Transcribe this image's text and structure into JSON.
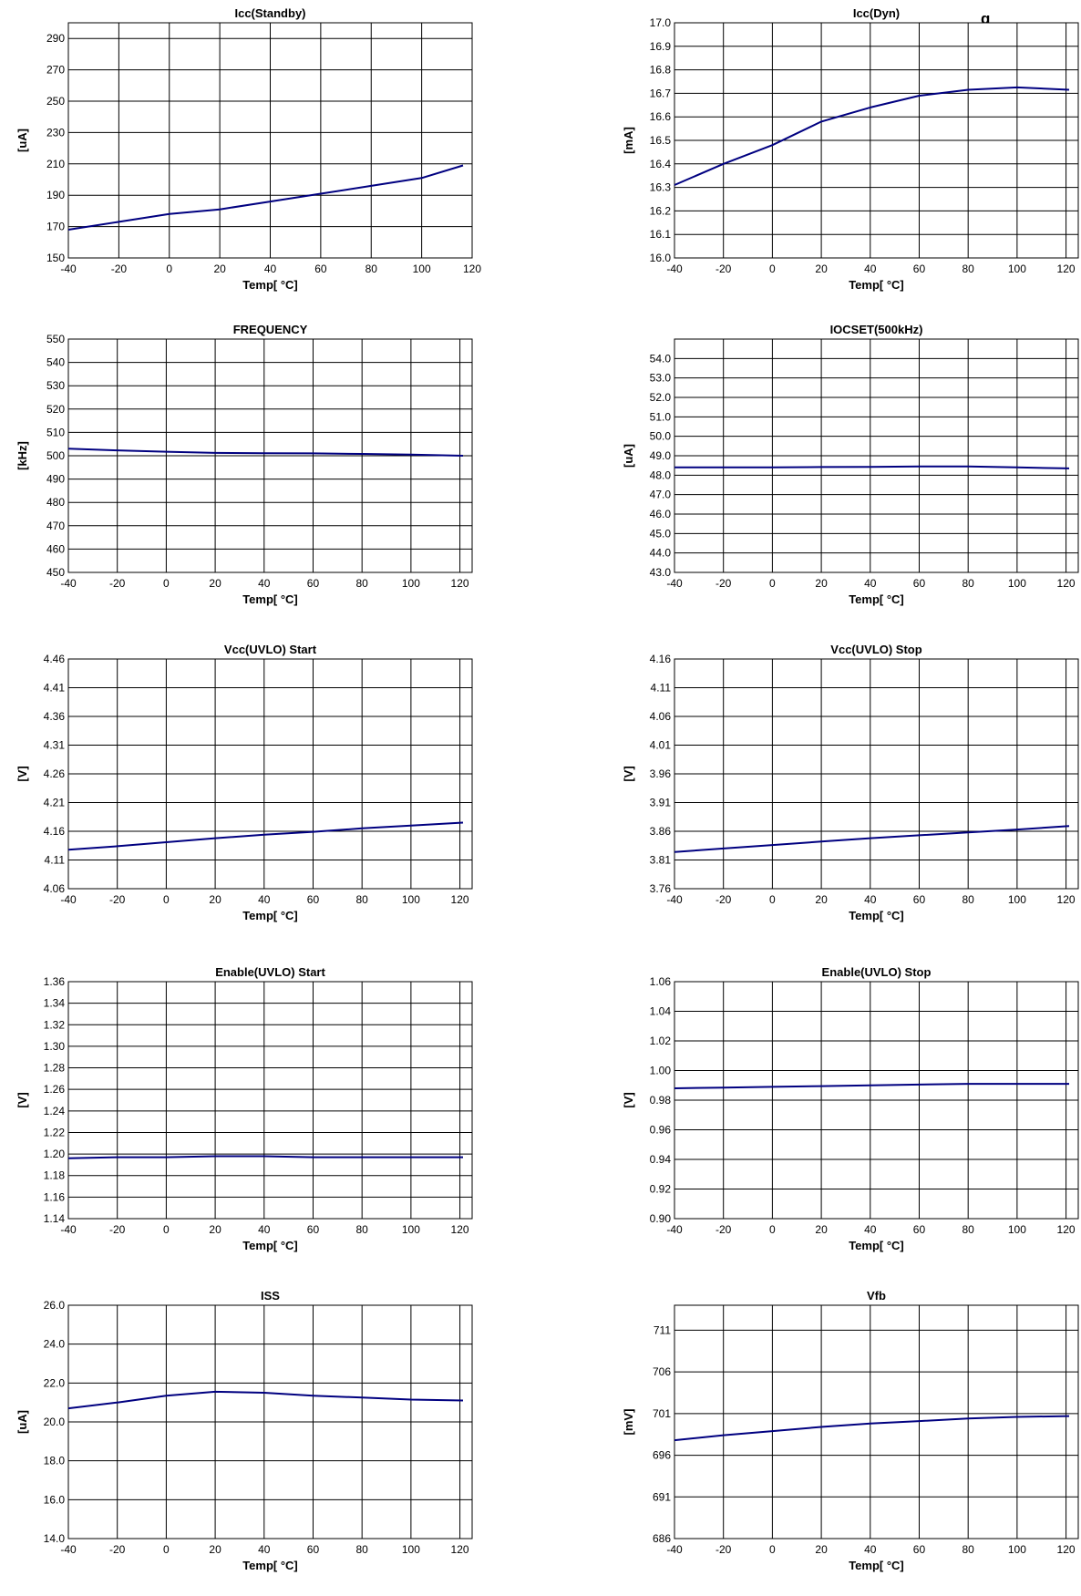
{
  "header_fragment": "g",
  "chart_data": [
    {
      "type": "line",
      "title": "Icc(Standby)",
      "xlabel": "Temp[ °C]",
      "ylabel": "[uA]",
      "xlim": [
        -40,
        120
      ],
      "xticks": [
        -40,
        -20,
        0,
        20,
        40,
        60,
        80,
        100,
        120
      ],
      "ylim": [
        150,
        300
      ],
      "yticks": [
        150,
        170,
        190,
        210,
        230,
        250,
        270,
        290
      ],
      "ydecimals": 0,
      "grid": true,
      "color": "#000080",
      "series": [
        {
          "x": [
            -40,
            -20,
            0,
            20,
            40,
            60,
            80,
            100,
            125
          ],
          "y": [
            168,
            173,
            178,
            181,
            186,
            191,
            196,
            201,
            209
          ]
        }
      ]
    },
    {
      "type": "line",
      "title": "Icc(Dyn)",
      "xlabel": "Temp[ °C]",
      "ylabel": "[mA]",
      "xlim": [
        -40,
        125
      ],
      "xticks": [
        -40,
        -20,
        0,
        20,
        40,
        60,
        80,
        100,
        120
      ],
      "ylim": [
        16.0,
        17.0
      ],
      "yticks": [
        16.0,
        16.1,
        16.2,
        16.3,
        16.4,
        16.5,
        16.6,
        16.7,
        16.8,
        16.9,
        17.0
      ],
      "ydecimals": 1,
      "grid": true,
      "color": "#000080",
      "series": [
        {
          "x": [
            -40,
            -20,
            0,
            20,
            40,
            60,
            80,
            100,
            125
          ],
          "y": [
            16.31,
            16.4,
            16.48,
            16.58,
            16.64,
            16.69,
            16.715,
            16.725,
            16.715
          ]
        }
      ]
    },
    {
      "type": "line",
      "title": "FREQUENCY",
      "xlabel": "Temp[ °C]",
      "ylabel": "[kHz]",
      "xlim": [
        -40,
        125
      ],
      "xticks": [
        -40,
        -20,
        0,
        20,
        40,
        60,
        80,
        100,
        120
      ],
      "ylim": [
        450,
        550
      ],
      "yticks": [
        450,
        460,
        470,
        480,
        490,
        500,
        510,
        520,
        530,
        540,
        550
      ],
      "ydecimals": 0,
      "grid": true,
      "color": "#000080",
      "series": [
        {
          "x": [
            -40,
            -20,
            0,
            20,
            40,
            60,
            80,
            100,
            125
          ],
          "y": [
            503,
            502.3,
            501.7,
            501.2,
            501.1,
            501.0,
            500.8,
            500.5,
            500.0
          ]
        }
      ]
    },
    {
      "type": "line",
      "title": "IOCSET(500kHz)",
      "xlabel": "Temp[ °C]",
      "ylabel": "[uA]",
      "xlim": [
        -40,
        125
      ],
      "xticks": [
        -40,
        -20,
        0,
        20,
        40,
        60,
        80,
        100,
        120
      ],
      "ylim": [
        43.0,
        55.0
      ],
      "yticks": [
        43.0,
        44.0,
        45.0,
        46.0,
        47.0,
        48.0,
        49.0,
        50.0,
        51.0,
        52.0,
        53.0,
        54.0
      ],
      "ydecimals": 1,
      "grid": true,
      "color": "#000080",
      "series": [
        {
          "x": [
            -40,
            -20,
            0,
            20,
            40,
            60,
            80,
            100,
            125
          ],
          "y": [
            48.4,
            48.4,
            48.4,
            48.42,
            48.43,
            48.45,
            48.45,
            48.4,
            48.35
          ]
        }
      ]
    },
    {
      "type": "line",
      "title": "Vcc(UVLO) Start",
      "xlabel": "Temp[ °C]",
      "ylabel": "[V]",
      "xlim": [
        -40,
        125
      ],
      "xticks": [
        -40,
        -20,
        0,
        20,
        40,
        60,
        80,
        100,
        120
      ],
      "ylim": [
        4.06,
        4.46
      ],
      "yticks": [
        4.06,
        4.11,
        4.16,
        4.21,
        4.26,
        4.31,
        4.36,
        4.41,
        4.46
      ],
      "ydecimals": 2,
      "grid": true,
      "color": "#000080",
      "series": [
        {
          "x": [
            -40,
            -20,
            0,
            20,
            40,
            60,
            80,
            100,
            125
          ],
          "y": [
            4.128,
            4.134,
            4.141,
            4.148,
            4.154,
            4.159,
            4.165,
            4.17,
            4.175
          ]
        }
      ]
    },
    {
      "type": "line",
      "title": "Vcc(UVLO) Stop",
      "xlabel": "Temp[ °C]",
      "ylabel": "[V]",
      "xlim": [
        -40,
        125
      ],
      "xticks": [
        -40,
        -20,
        0,
        20,
        40,
        60,
        80,
        100,
        120
      ],
      "ylim": [
        3.76,
        4.16
      ],
      "yticks": [
        3.76,
        3.81,
        3.86,
        3.91,
        3.96,
        4.01,
        4.06,
        4.11,
        4.16
      ],
      "ydecimals": 2,
      "grid": true,
      "color": "#000080",
      "series": [
        {
          "x": [
            -40,
            -20,
            0,
            20,
            40,
            60,
            80,
            100,
            125
          ],
          "y": [
            3.824,
            3.83,
            3.836,
            3.842,
            3.848,
            3.853,
            3.858,
            3.863,
            3.869
          ]
        }
      ]
    },
    {
      "type": "line",
      "title": "Enable(UVLO) Start",
      "xlabel": "Temp[ °C]",
      "ylabel": "[V]",
      "xlim": [
        -40,
        125
      ],
      "xticks": [
        -40,
        -20,
        0,
        20,
        40,
        60,
        80,
        100,
        120
      ],
      "ylim": [
        1.14,
        1.36
      ],
      "yticks": [
        1.14,
        1.16,
        1.18,
        1.2,
        1.22,
        1.24,
        1.26,
        1.28,
        1.3,
        1.32,
        1.34,
        1.36
      ],
      "ydecimals": 2,
      "grid": true,
      "color": "#000080",
      "series": [
        {
          "x": [
            -40,
            -20,
            0,
            20,
            40,
            60,
            80,
            100,
            125
          ],
          "y": [
            1.196,
            1.197,
            1.197,
            1.198,
            1.198,
            1.197,
            1.197,
            1.197,
            1.197
          ]
        }
      ]
    },
    {
      "type": "line",
      "title": "Enable(UVLO) Stop",
      "xlabel": "Temp[ °C]",
      "ylabel": "[V]",
      "xlim": [
        -40,
        125
      ],
      "xticks": [
        -40,
        -20,
        0,
        20,
        40,
        60,
        80,
        100,
        120
      ],
      "ylim": [
        0.9,
        1.06
      ],
      "yticks": [
        0.9,
        0.92,
        0.94,
        0.96,
        0.98,
        1.0,
        1.02,
        1.04,
        1.06
      ],
      "ydecimals": 2,
      "grid": true,
      "color": "#000080",
      "series": [
        {
          "x": [
            -40,
            -20,
            0,
            20,
            40,
            60,
            80,
            100,
            125
          ],
          "y": [
            0.988,
            0.9885,
            0.989,
            0.9895,
            0.99,
            0.9905,
            0.991,
            0.991,
            0.991
          ]
        }
      ]
    },
    {
      "type": "line",
      "title": "ISS",
      "xlabel": "Temp[ °C]",
      "ylabel": "[uA]",
      "xlim": [
        -40,
        125
      ],
      "xticks": [
        -40,
        -20,
        0,
        20,
        40,
        60,
        80,
        100,
        120
      ],
      "ylim": [
        14.0,
        26.0
      ],
      "yticks": [
        14.0,
        16.0,
        18.0,
        20.0,
        22.0,
        24.0,
        26.0
      ],
      "ydecimals": 1,
      "grid": true,
      "color": "#000080",
      "series": [
        {
          "x": [
            -40,
            -20,
            0,
            20,
            40,
            60,
            80,
            100,
            125
          ],
          "y": [
            20.7,
            21.0,
            21.35,
            21.55,
            21.5,
            21.35,
            21.25,
            21.15,
            21.1
          ]
        }
      ]
    },
    {
      "type": "line",
      "title": "Vfb",
      "xlabel": "Temp[ °C]",
      "ylabel": "[mV]",
      "xlim": [
        -40,
        125
      ],
      "xticks": [
        -40,
        -20,
        0,
        20,
        40,
        60,
        80,
        100,
        120
      ],
      "ylim": [
        686,
        714
      ],
      "yticks": [
        686,
        691,
        696,
        701,
        706,
        711
      ],
      "ydecimals": 0,
      "grid": true,
      "color": "#000080",
      "series": [
        {
          "x": [
            -40,
            -20,
            0,
            20,
            40,
            60,
            80,
            100,
            125
          ],
          "y": [
            697.8,
            698.4,
            698.9,
            699.4,
            699.8,
            700.1,
            700.4,
            700.6,
            700.7
          ]
        }
      ]
    }
  ]
}
